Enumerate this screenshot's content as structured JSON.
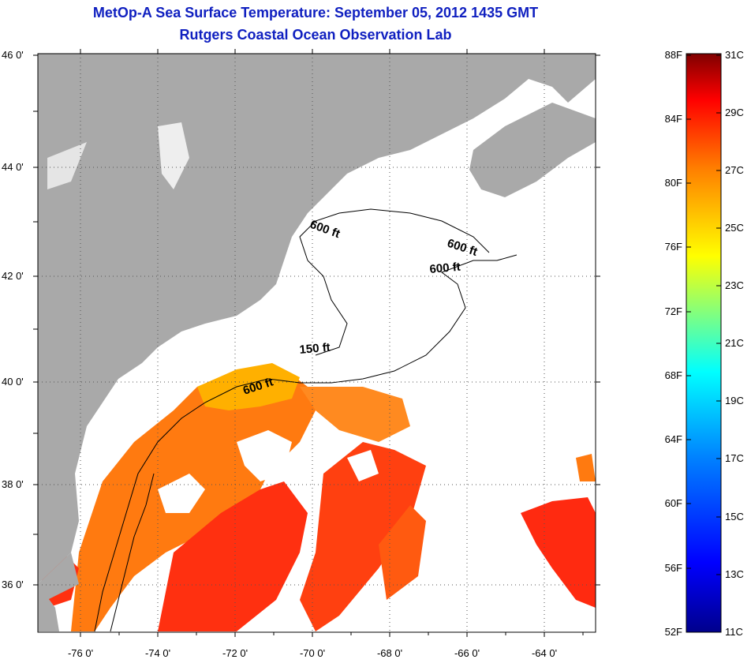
{
  "header": {
    "title": "MetOp-A Sea Surface Temperature:  September 05, 2012 1435 GMT",
    "subtitle": "Rutgers Coastal Ocean Observation Lab"
  },
  "map": {
    "lat_labels": [
      "46 0'",
      "44 0'",
      "42 0'",
      "40 0'",
      "38 0'",
      "36 0'"
    ],
    "lon_labels": [
      "-76 0'",
      "-74 0'",
      "-72 0'",
      "-70 0'",
      "-68 0'",
      "-66 0'",
      "-64 0'"
    ],
    "contour_labels": [
      "600 ft",
      "600 ft",
      "600 ft",
      "150 ft",
      "600 ft"
    ],
    "colors": {
      "land": "#a9a9a9",
      "ocean_no_data": "#ffffff",
      "grid": "#000000"
    }
  },
  "colorbar": {
    "fahrenheit_labels": [
      "88F",
      "84F",
      "80F",
      "76F",
      "72F",
      "68F",
      "64F",
      "60F",
      "56F",
      "52F"
    ],
    "celsius_labels": [
      "31C",
      "29C",
      "27C",
      "25C",
      "23C",
      "21C",
      "19C",
      "17C",
      "15C",
      "13C",
      "11C"
    ],
    "colors": [
      "#00008c",
      "#0000ff",
      "#0080ff",
      "#00ffff",
      "#80ff80",
      "#ffff00",
      "#ff8000",
      "#ff0000",
      "#800000"
    ]
  }
}
